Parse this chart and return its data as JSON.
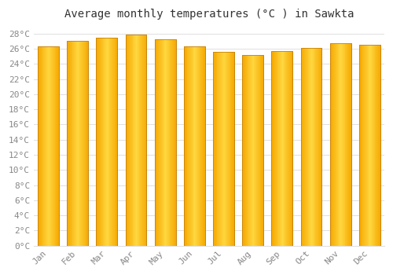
{
  "title": "Average monthly temperatures (°C ) in Sawkta",
  "months": [
    "Jan",
    "Feb",
    "Mar",
    "Apr",
    "May",
    "Jun",
    "Jul",
    "Aug",
    "Sep",
    "Oct",
    "Nov",
    "Dec"
  ],
  "values": [
    26.3,
    27.0,
    27.5,
    27.9,
    27.3,
    26.3,
    25.6,
    25.2,
    25.7,
    26.1,
    26.7,
    26.5
  ],
  "ylim": [
    0,
    29
  ],
  "yticks": [
    0,
    2,
    4,
    6,
    8,
    10,
    12,
    14,
    16,
    18,
    20,
    22,
    24,
    26,
    28
  ],
  "bar_color_center": "#FFD740",
  "bar_color_edge": "#F5A800",
  "bar_edge_color": "#C8820A",
  "background_color": "#FFFFFF",
  "grid_color": "#E0E0E0",
  "title_fontsize": 10,
  "tick_fontsize": 8,
  "tick_color": "#888888",
  "font_family": "monospace"
}
